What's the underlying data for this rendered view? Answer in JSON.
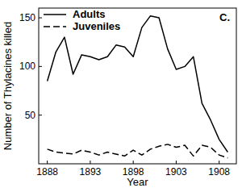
{
  "chart_data": {
    "type": "line",
    "title": "C.",
    "x_label": "Year",
    "y_label": "Number of Thylacines killed",
    "x": [
      1888,
      1889,
      1890,
      1891,
      1892,
      1893,
      1894,
      1895,
      1896,
      1897,
      1898,
      1899,
      1900,
      1901,
      1902,
      1903,
      1904,
      1905,
      1906,
      1907,
      1908,
      1909
    ],
    "series": [
      {
        "name": "Adults",
        "color": "#000000",
        "line_style": "solid",
        "values": [
          85,
          115,
          130,
          92,
          112,
          110,
          107,
          110,
          122,
          120,
          110,
          140,
          152,
          150,
          118,
          97,
          100,
          110,
          62,
          45,
          25,
          12
        ]
      },
      {
        "name": "Juveniles",
        "color": "#000000",
        "line_style": "dashed",
        "values": [
          15,
          12,
          11,
          10,
          14,
          12,
          9,
          12,
          10,
          8,
          14,
          9,
          15,
          18,
          20,
          17,
          19,
          8,
          19,
          17,
          9,
          6
        ]
      }
    ],
    "xlim": [
      1887,
      1910
    ],
    "ylim": [
      0,
      160
    ],
    "xticks": [
      1888,
      1893,
      1898,
      1903,
      1908
    ],
    "yticks": [
      50,
      100,
      150
    ],
    "legend": "upper left",
    "grid": false
  }
}
